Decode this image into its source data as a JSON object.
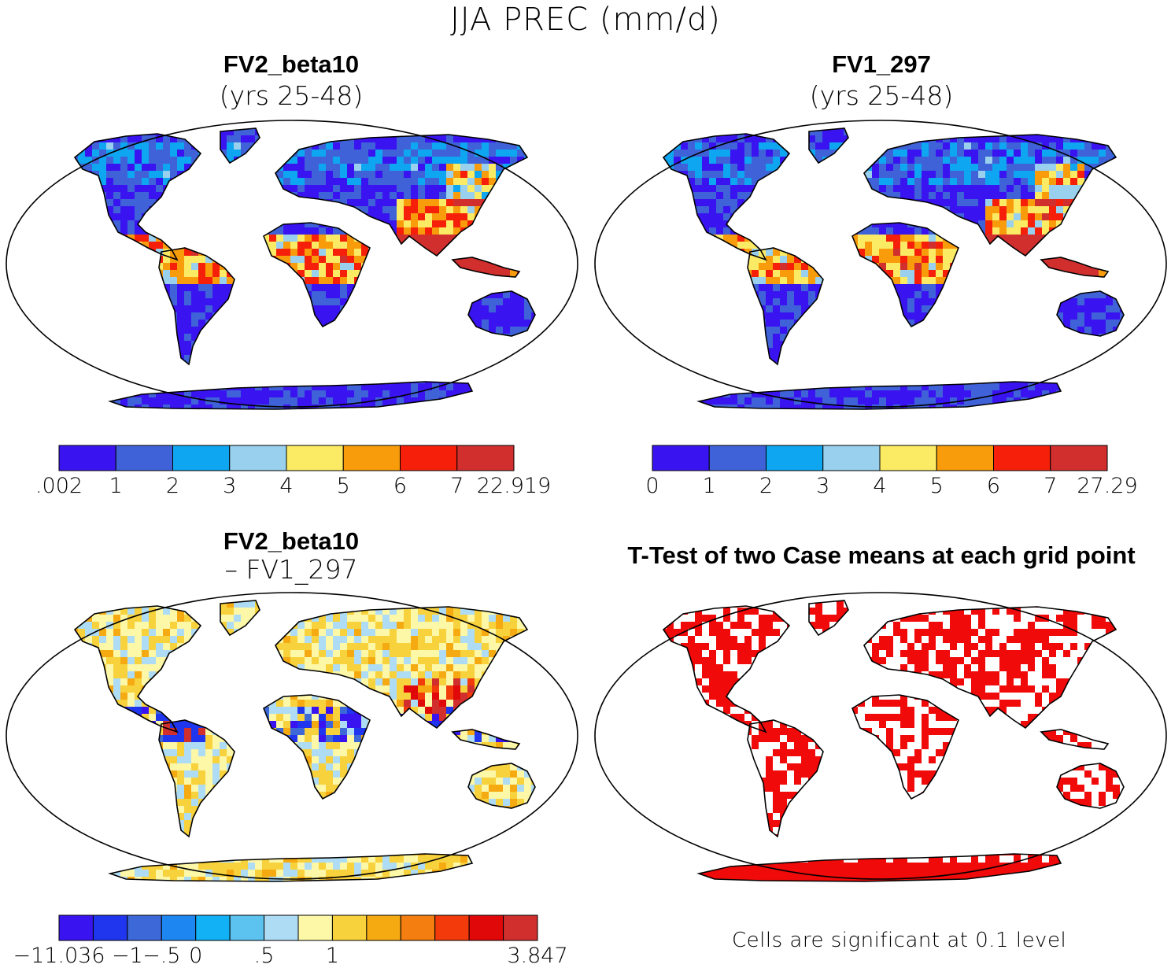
{
  "figure": {
    "title": "JJA PREC (mm/d)",
    "footnote": "Cells are significant at 0.1 level"
  },
  "panels": [
    {
      "id": "fv2",
      "title": "FV2_beta10",
      "subtitle": "(yrs 25-48)",
      "colorbar": {
        "colors": [
          "#3a14f0",
          "#3f62d8",
          "#0ea6f0",
          "#98d0ee",
          "#fbeb64",
          "#f89c0c",
          "#f6200a",
          "#d12e2e"
        ],
        "tick_labels": [
          ".002",
          "1",
          "2",
          "3",
          "4",
          "5",
          "6",
          "7",
          "22.919"
        ]
      }
    },
    {
      "id": "fv1",
      "title": "FV1_297",
      "subtitle": "(yrs 25-48)",
      "colorbar": {
        "colors": [
          "#3a14f0",
          "#3f62d8",
          "#0ea6f0",
          "#98d0ee",
          "#fbeb64",
          "#f89c0c",
          "#f6200a",
          "#d12e2e"
        ],
        "tick_labels": [
          "0",
          "1",
          "2",
          "3",
          "4",
          "5",
          "6",
          "7",
          "27.29"
        ]
      }
    },
    {
      "id": "diff",
      "title": "FV2_beta10",
      "subtitle": "– FV1_297",
      "colorbar": {
        "colors": [
          "#3a14f0",
          "#1f36ee",
          "#3d68d8",
          "#1e86f0",
          "#12b0f4",
          "#5cc2f0",
          "#aedcf4",
          "#fdf7a8",
          "#f8d23c",
          "#f6aa12",
          "#f47e10",
          "#f23a0a",
          "#e00808",
          "#d12e2e"
        ],
        "tick_labels": [
          "−11.036",
          "−1",
          "−.5",
          "0",
          ".5",
          "1",
          "3.847"
        ],
        "tick_boundaries": [
          0,
          2,
          3,
          4,
          6,
          8,
          14
        ]
      }
    },
    {
      "id": "ttest",
      "title": "T-Test of two Case means at each grid point",
      "significance_color": "#f00a0a"
    }
  ],
  "map": {
    "projection": "Robinson",
    "coastline_color": "#000000"
  }
}
